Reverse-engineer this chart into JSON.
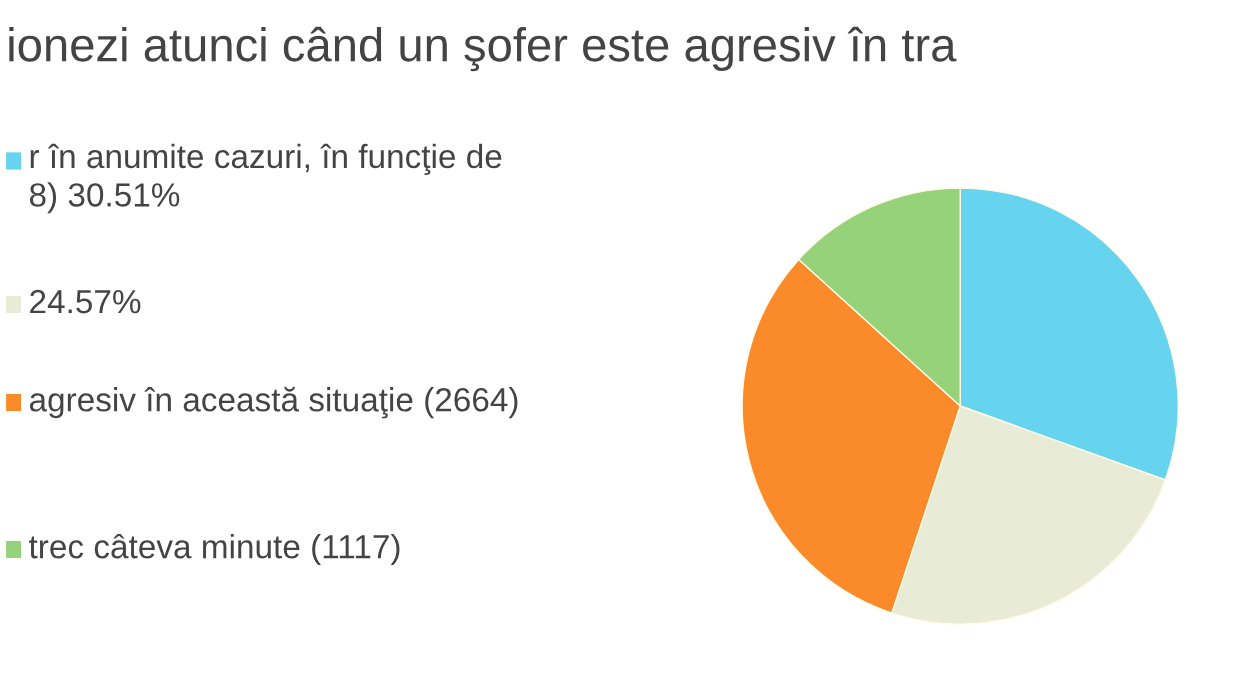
{
  "chart_data": {
    "type": "pie",
    "title": "ionezi atunci când un şofer este agresiv în tra",
    "categories": [
      "r în anumite cazuri, în funcţie de\n8) 30.51%",
      "24.57%",
      "agresiv în această situaţie (2664)",
      "trec câteva minute (1117)"
    ],
    "values": [
      30.51,
      24.57,
      31.65,
      13.27
    ],
    "colors": [
      "#66d4ee",
      "#e8ebd5",
      "#fb8a2a",
      "#96d279"
    ],
    "legend": "left"
  }
}
